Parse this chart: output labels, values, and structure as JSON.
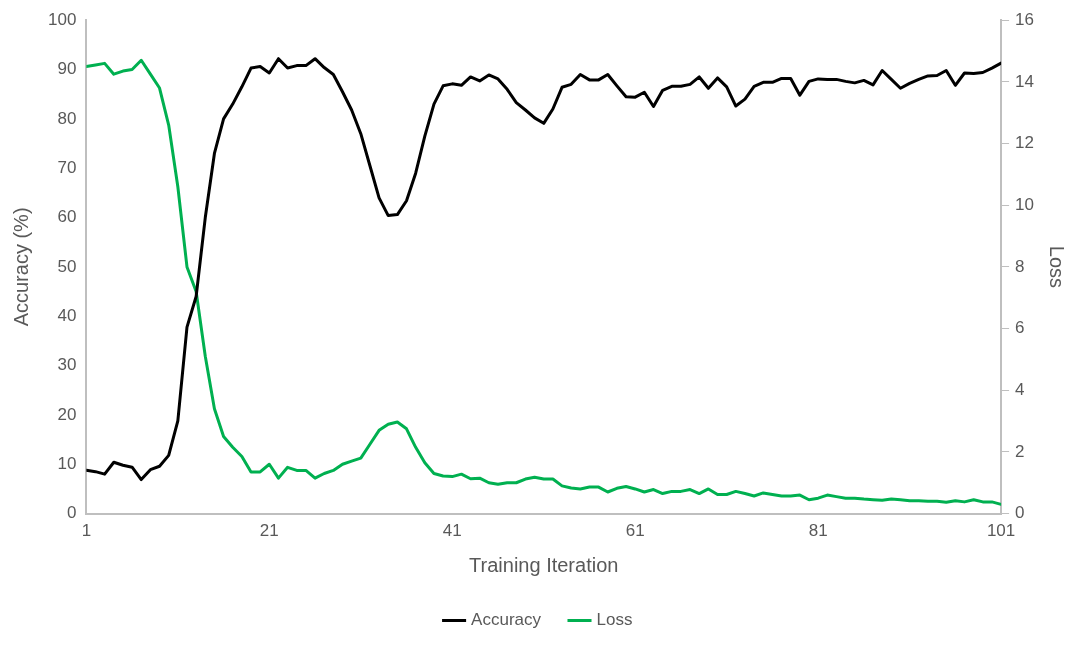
{
  "chart_data": {
    "type": "line",
    "xlabel": "Training Iteration",
    "ylabel": "Accuracy (%)",
    "y2label": "Loss",
    "x": [
      1,
      2,
      3,
      4,
      5,
      6,
      7,
      8,
      9,
      10,
      11,
      12,
      13,
      14,
      15,
      16,
      17,
      18,
      19,
      20,
      21,
      22,
      23,
      24,
      25,
      26,
      27,
      28,
      29,
      30,
      31,
      32,
      33,
      34,
      35,
      36,
      37,
      38,
      39,
      40,
      41,
      42,
      43,
      44,
      45,
      46,
      47,
      48,
      49,
      50,
      51,
      52,
      53,
      54,
      55,
      56,
      57,
      58,
      59,
      60,
      61,
      62,
      63,
      64,
      65,
      66,
      67,
      68,
      69,
      70,
      71,
      72,
      73,
      74,
      75,
      76,
      77,
      78,
      79,
      80,
      81,
      82,
      83,
      84,
      85,
      86,
      87,
      88,
      89,
      90,
      91,
      92,
      93,
      94,
      95,
      96,
      97,
      98,
      99,
      100,
      101
    ],
    "series": [
      {
        "name": "Accuracy",
        "color": "#000000",
        "values": [
          8.8,
          8.5,
          8.0,
          10.4,
          9.8,
          9.4,
          6.9,
          8.9,
          9.6,
          11.8,
          18.8,
          37.8,
          44,
          60,
          73,
          80,
          83,
          86.5,
          90.3,
          90.6,
          89.3,
          92.2,
          90.3,
          90.8,
          90.8,
          92.2,
          90.4,
          89,
          85.5,
          81.8,
          77,
          70.5,
          64,
          60.4,
          60.6,
          63.4,
          69,
          76.5,
          83,
          86.7,
          87.1,
          86.8,
          88.5,
          87.7,
          88.9,
          88.1,
          86,
          83.3,
          81.8,
          80.2,
          79.1,
          82,
          86.4,
          87,
          89,
          87.9,
          87.9,
          89,
          86.7,
          84.5,
          84.4,
          85.4,
          82.5,
          85.8,
          86.6,
          86.6,
          87,
          88.5,
          86.2,
          88.3,
          86.5,
          82.6,
          84,
          86.6,
          87.4,
          87.4,
          88.2,
          88.2,
          84.8,
          87.6,
          88.1,
          88,
          88,
          87.6,
          87.3,
          87.8,
          86.9,
          89.8,
          88,
          86.2,
          87.2,
          88,
          88.7,
          88.8,
          89.8,
          86.8,
          89.3,
          89.2,
          89.4,
          90.3,
          91.3
        ]
      },
      {
        "name": "Loss",
        "color": "#00b050",
        "axis": "y2",
        "values": [
          14.5,
          14.55,
          14.6,
          14.25,
          14.35,
          14.4,
          14.7,
          14.25,
          13.8,
          12.6,
          10.6,
          8.0,
          7.2,
          5.1,
          3.4,
          2.5,
          2.15,
          1.85,
          1.35,
          1.35,
          1.6,
          1.15,
          1.5,
          1.4,
          1.4,
          1.15,
          1.3,
          1.4,
          1.6,
          1.7,
          1.8,
          2.25,
          2.7,
          2.9,
          2.97,
          2.75,
          2.15,
          1.65,
          1.3,
          1.22,
          1.2,
          1.28,
          1.13,
          1.15,
          1.0,
          0.95,
          1.0,
          1.0,
          1.12,
          1.18,
          1.12,
          1.12,
          0.9,
          0.83,
          0.8,
          0.86,
          0.86,
          0.7,
          0.82,
          0.88,
          0.8,
          0.7,
          0.78,
          0.65,
          0.72,
          0.72,
          0.78,
          0.65,
          0.8,
          0.62,
          0.62,
          0.72,
          0.65,
          0.57,
          0.67,
          0.62,
          0.57,
          0.57,
          0.6,
          0.45,
          0.5,
          0.6,
          0.55,
          0.5,
          0.5,
          0.47,
          0.45,
          0.43,
          0.47,
          0.45,
          0.42,
          0.42,
          0.4,
          0.4,
          0.37,
          0.42,
          0.38,
          0.45,
          0.38,
          0.38,
          0.3
        ]
      }
    ],
    "xlim": [
      1,
      101
    ],
    "xticks": [
      1,
      21,
      41,
      61,
      81,
      101
    ],
    "ylim": [
      0,
      100
    ],
    "yticks": [
      0,
      10,
      20,
      30,
      40,
      50,
      60,
      70,
      80,
      90,
      100
    ],
    "y2lim": [
      0,
      16
    ],
    "y2ticks": [
      0,
      2,
      4,
      6,
      8,
      10,
      12,
      14,
      16
    ],
    "grid": false,
    "legend": "bottom",
    "marker": "none",
    "line_style": "solid"
  }
}
